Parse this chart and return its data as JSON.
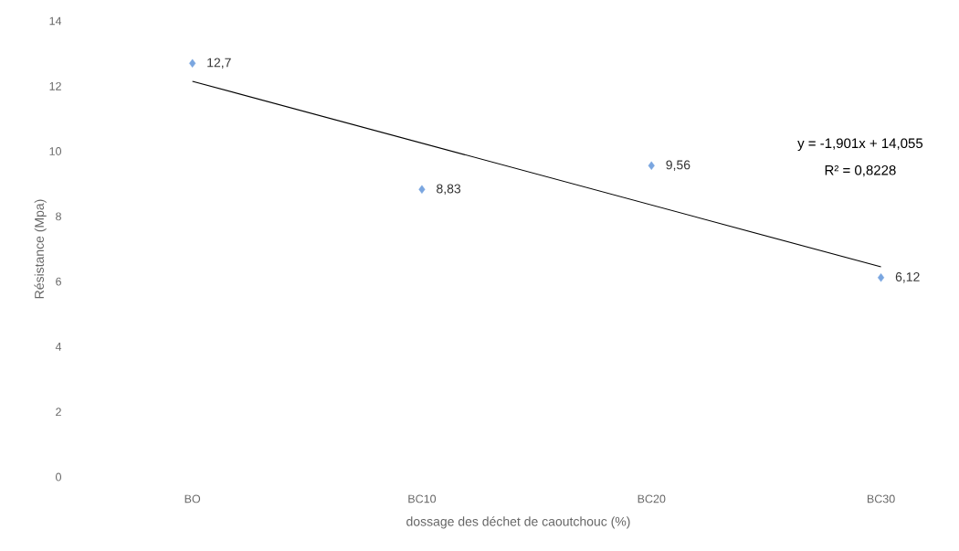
{
  "chart_data": {
    "type": "scatter",
    "xlabel": "dossage des déchet de caoutchouc (%)",
    "ylabel": "Résistance (Mpa)",
    "categories": [
      "BO",
      "BC10",
      "BC20",
      "BC30"
    ],
    "series": [
      {
        "color": "#7aa6e0",
        "marker": "diamond",
        "values": [
          12.7,
          8.83,
          9.56,
          6.12
        ],
        "value_labels": [
          "12,7",
          "8,83",
          "9,56",
          "6,12"
        ]
      },
      {
        "type": "line",
        "color": "#000000",
        "x": [
          "BO",
          "BC30"
        ],
        "values": [
          12.15,
          6.45
        ]
      }
    ],
    "annotations": [
      "y = -1,901x + 14,055",
      "R² = 0,8228"
    ],
    "ylim": [
      0,
      14
    ],
    "yticks": [
      0,
      2,
      4,
      6,
      8,
      10,
      12,
      14
    ],
    "grid": false
  }
}
